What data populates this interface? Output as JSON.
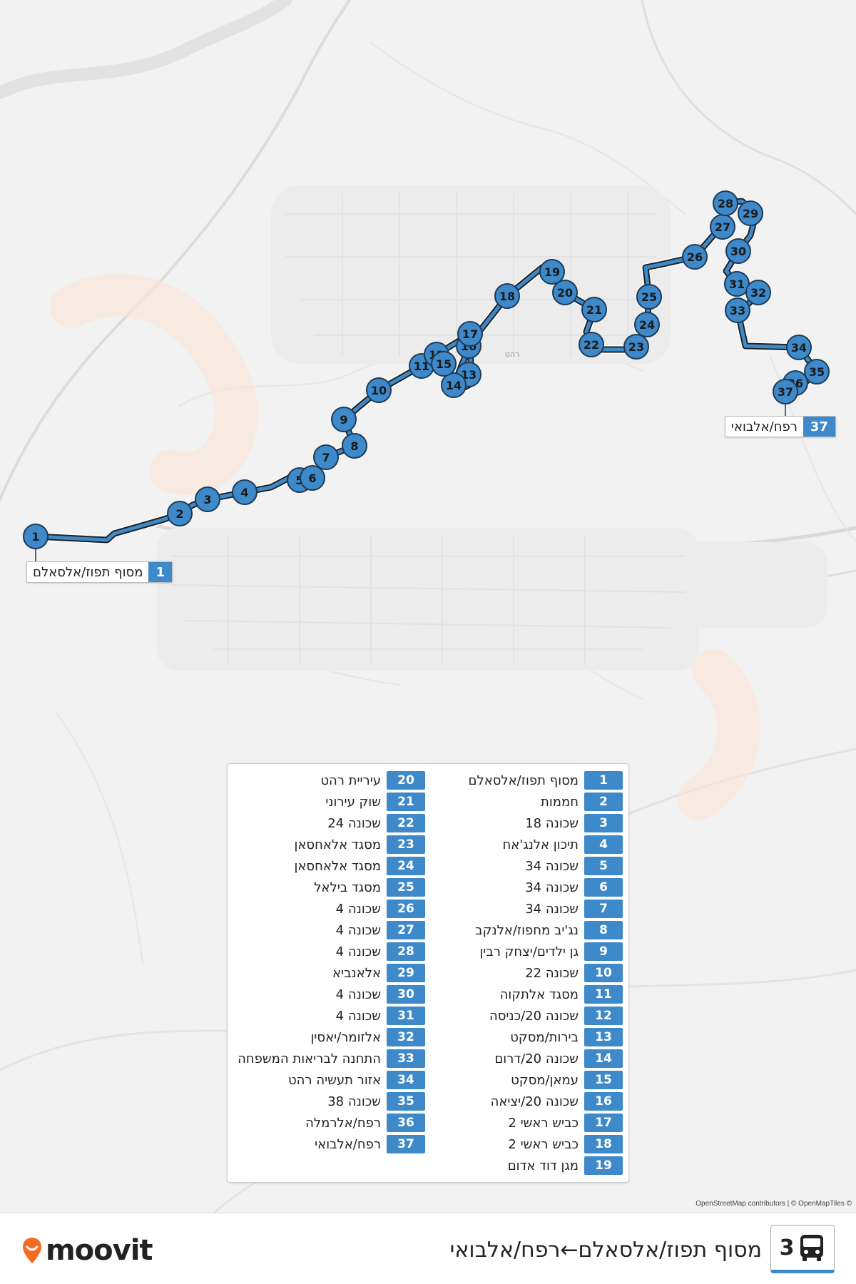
{
  "route": {
    "number": "3",
    "title": "מסוף תפוז/אלסאלם←רפח/אלבואי",
    "line_color": "#3d89c9"
  },
  "brand": {
    "logo_text": "moovit",
    "accent": "#f26b21"
  },
  "attribution": "OpenStreetMap contributors | © OpenMapTiles ©",
  "map": {
    "place_label": "רהט"
  },
  "terminals": {
    "start": {
      "num": "1",
      "name": "מסוף תפוז/אלסאלם"
    },
    "end": {
      "num": "37",
      "name": "רפח/אלבואי"
    }
  },
  "stops": [
    {
      "num": "1",
      "name": "מסוף תפוז/אלסאלם"
    },
    {
      "num": "2",
      "name": "חממות"
    },
    {
      "num": "3",
      "name": "שכונה 18"
    },
    {
      "num": "4",
      "name": "תיכון אלנג'אח"
    },
    {
      "num": "5",
      "name": "שכונה 34"
    },
    {
      "num": "6",
      "name": "שכונה 34"
    },
    {
      "num": "7",
      "name": "שכונה 34"
    },
    {
      "num": "8",
      "name": "נג'יב מחפוז/אלנקב"
    },
    {
      "num": "9",
      "name": "גן ילדים/יצחק רבין"
    },
    {
      "num": "10",
      "name": "שכונה 22"
    },
    {
      "num": "11",
      "name": "מסגד אלתקוה"
    },
    {
      "num": "12",
      "name": "שכונה 20/כניסה"
    },
    {
      "num": "13",
      "name": "בירות/מסקט"
    },
    {
      "num": "14",
      "name": "שכונה 20/דרום"
    },
    {
      "num": "15",
      "name": "עמאן/מסקט"
    },
    {
      "num": "16",
      "name": "שכונה 20/יציאה"
    },
    {
      "num": "17",
      "name": "כביש ראשי 2"
    },
    {
      "num": "18",
      "name": "כביש ראשי 2"
    },
    {
      "num": "19",
      "name": "מגן דוד אדום"
    },
    {
      "num": "20",
      "name": "עיריית רהט"
    },
    {
      "num": "21",
      "name": "שוק עירוני"
    },
    {
      "num": "22",
      "name": "שכונה 24"
    },
    {
      "num": "23",
      "name": "מסגד אלאחסאן"
    },
    {
      "num": "24",
      "name": "מסגד אלאחסאן"
    },
    {
      "num": "25",
      "name": "מסגד בילאל"
    },
    {
      "num": "26",
      "name": "שכונה 4"
    },
    {
      "num": "27",
      "name": "שכונה 4"
    },
    {
      "num": "28",
      "name": "שכונה 4"
    },
    {
      "num": "29",
      "name": "אלאנביא"
    },
    {
      "num": "30",
      "name": "שכונה 4"
    },
    {
      "num": "31",
      "name": "שכונה 4"
    },
    {
      "num": "32",
      "name": "אלזומר/יאסין"
    },
    {
      "num": "33",
      "name": "התחנה לבריאות המשפחה"
    },
    {
      "num": "34",
      "name": "אזור תעשיה רהט"
    },
    {
      "num": "35",
      "name": "שכונה 38"
    },
    {
      "num": "36",
      "name": "רפח/אלרמלה"
    },
    {
      "num": "37",
      "name": "רפח/אלבואי"
    }
  ]
}
